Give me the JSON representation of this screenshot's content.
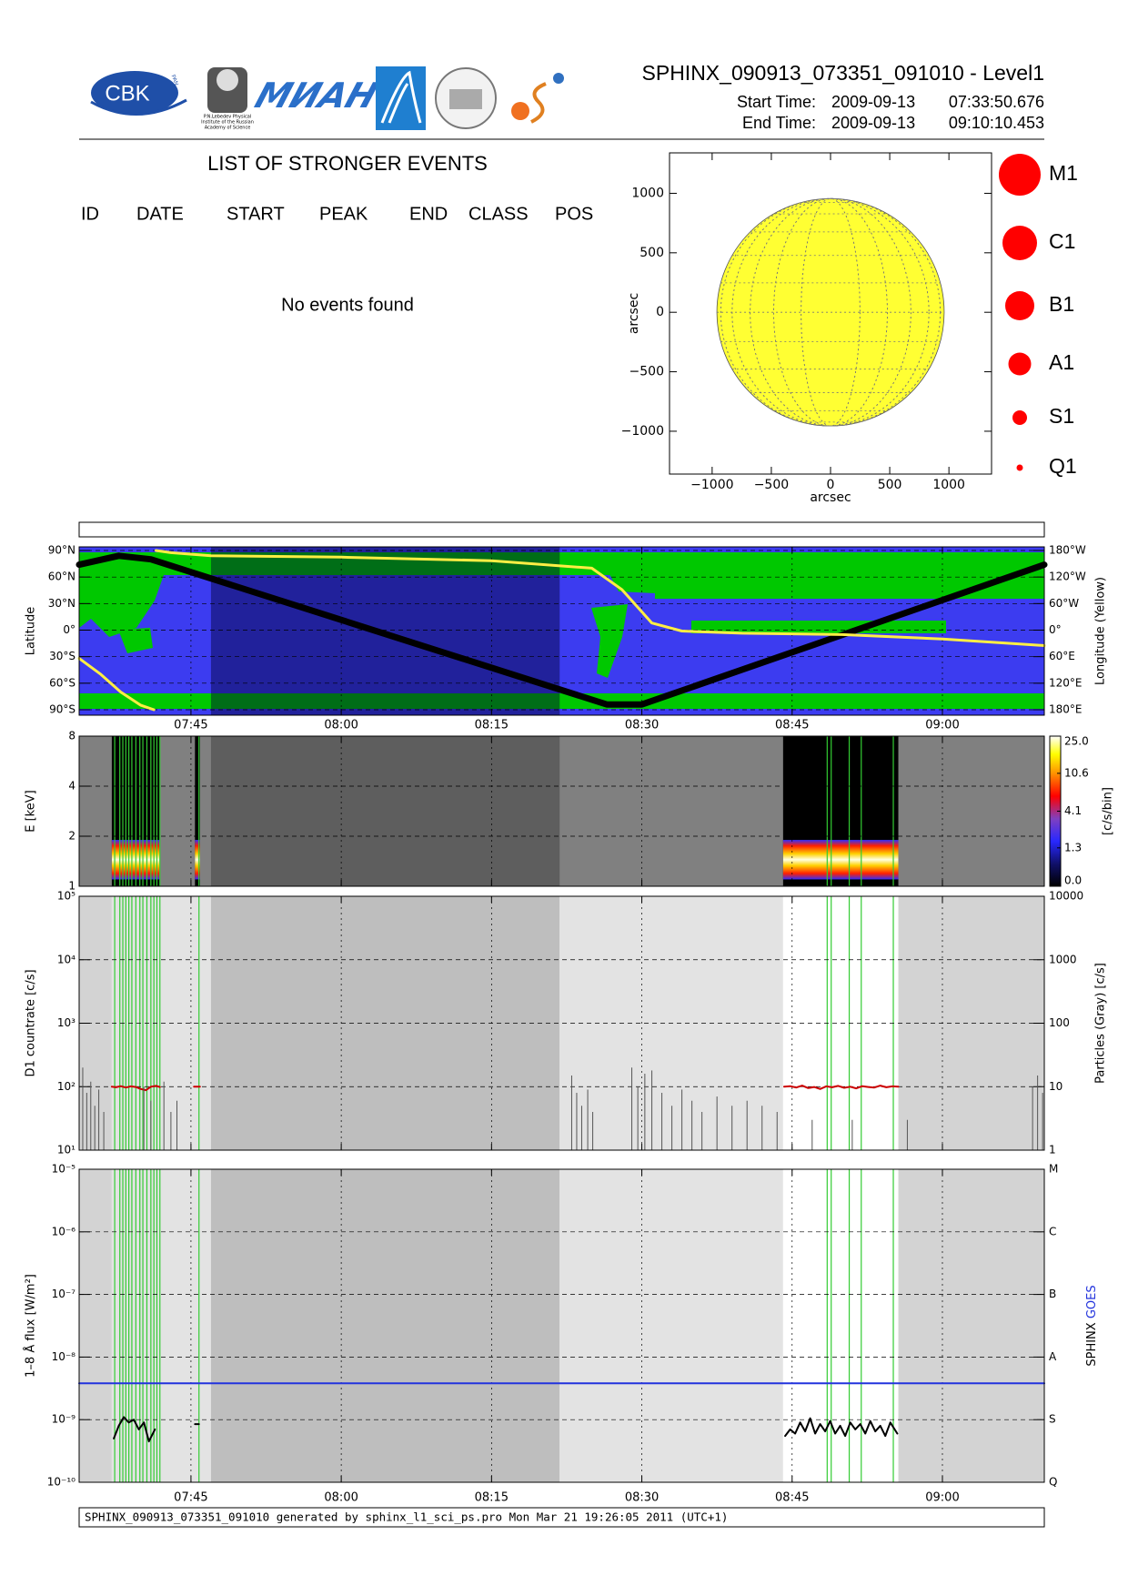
{
  "header": {
    "logo_text": "CBK",
    "logo_subtext": "PAN",
    "mian_text": "МИАН",
    "lebedev_caption": [
      "P.N.Lebedev Physical",
      "Institute of the Russian",
      "Academy of Science"
    ],
    "title": "SPHINX_090913_073351_091010 - Level1",
    "start_label": "Start Time:",
    "start_date": "2009-09-13",
    "start_time": "07:33:50.676",
    "end_label": "End Time:",
    "end_date": "2009-09-13",
    "end_time": "09:10:10.453"
  },
  "events": {
    "title": "LIST OF STRONGER EVENTS",
    "columns": [
      "ID",
      "DATE",
      "START",
      "PEAK",
      "END",
      "CLASS",
      "POS"
    ],
    "message": "No events found"
  },
  "timeline": {
    "green_lines": [
      457.39,
      457.9,
      458.2,
      458.5,
      458.8,
      459.1,
      459.5,
      459.9,
      460.2,
      460.6,
      461.0,
      461.3,
      461.6,
      461.9,
      465.8,
      528.5,
      528.9,
      530.7,
      531.9,
      535.1
    ],
    "color": "#33cc33"
  },
  "chart_data": [
    {
      "type": "disk",
      "xlabel": "arcsec",
      "ylabel": "arcsec",
      "xlim": [
        -1360,
        1360
      ],
      "ylim": [
        -1360,
        1340
      ],
      "xticks": [
        {
          "value": -1000,
          "label": "−1000"
        },
        {
          "value": -500,
          "label": "−500"
        },
        0,
        500,
        1000
      ],
      "yticks": [
        {
          "value": -1000,
          "label": "−1000"
        },
        {
          "value": -500,
          "label": "−500"
        },
        0,
        500,
        1000
      ],
      "sun_radius": 960,
      "color": "#ffff33",
      "legend": [
        "M1",
        "C1",
        "B1",
        "A1",
        "S1",
        "Q1"
      ],
      "legend_color": "#ff0000"
    },
    {
      "type": "map",
      "ylabel": "Latitude",
      "y2label": "Longitude (Yellow)",
      "xlim": [
        453.84,
        550.17
      ],
      "xticks": [
        {
          "value": 465,
          "label": "07:45"
        },
        {
          "value": 480,
          "label": "08:00"
        },
        {
          "value": 495,
          "label": "08:15"
        },
        {
          "value": 510,
          "label": "08:30"
        },
        {
          "value": 525,
          "label": "08:45"
        },
        {
          "value": 540,
          "label": "09:00"
        }
      ],
      "ylim": [
        -90,
        90
      ],
      "yticks": [
        {
          "value": 90,
          "label": "90°N"
        },
        {
          "value": 60,
          "label": "60°N"
        },
        {
          "value": 30,
          "label": "30°N"
        },
        {
          "value": 0,
          "label": "0°"
        },
        {
          "value": -30,
          "label": "30°S"
        },
        {
          "value": -60,
          "label": "60°S"
        },
        {
          "value": -90,
          "label": "90°S"
        }
      ],
      "y2lim": [
        180,
        -180
      ],
      "y2ticks": [
        {
          "value": -180,
          "label": "180°W"
        },
        {
          "value": -120,
          "label": "120°W"
        },
        {
          "value": -60,
          "label": "60°W"
        },
        {
          "value": 0,
          "label": "0°"
        },
        {
          "value": 60,
          "label": "60°E"
        },
        {
          "value": 120,
          "label": "120°E"
        },
        {
          "value": 180,
          "label": "180°E"
        }
      ],
      "grid": true,
      "bands": [
        {
          "from": 467.0,
          "to": 501.8,
          "color": "rgba(0,0,50,0.45)"
        }
      ],
      "series": [
        {
          "color": "#000000",
          "x": [
            453.84,
            457.8,
            461,
            506.5,
            510,
            550.17
          ],
          "values": [
            74,
            84,
            80,
            -84,
            -84,
            74
          ]
        },
        {
          "color": "#ffee44",
          "axis": "y2",
          "x": [
            453.84,
            456,
            458,
            460,
            461.3,
            461.4,
            461.5,
            463,
            467,
            480,
            495,
            505,
            508,
            511,
            514,
            520,
            530,
            540,
            550.17
          ],
          "values": [
            64,
            100,
            140,
            170,
            180,
            null,
            -180,
            -175,
            -168,
            -165,
            -157,
            -140,
            -92,
            -16,
            2,
            7,
            10,
            20,
            35
          ]
        }
      ]
    },
    {
      "type": "spectrogram",
      "ylabel": "E [keV]",
      "log": true,
      "xlim": [
        453.84,
        550.17
      ],
      "xticks": [
        465,
        480,
        495,
        510,
        525,
        540
      ],
      "ylim": [
        1,
        8
      ],
      "yticks": [
        1,
        2,
        4,
        8
      ],
      "grid": true,
      "event_lines": true,
      "bands": [
        {
          "from": 453.84,
          "to": 550.17,
          "color": "#808080"
        },
        {
          "from": 467.0,
          "to": 501.8,
          "color": "#5e5e5e"
        }
      ],
      "data_intervals": [
        [
          457.1,
          461.9
        ],
        [
          465.4,
          465.9
        ],
        [
          524.1,
          535.6
        ]
      ],
      "emission_band": [
        1.1,
        1.9
      ],
      "colorbar": {
        "label": "[c/s/bin]",
        "scale": "log1p",
        "lim": [
          0,
          25
        ],
        "ticks": [
          {
            "value": 0,
            "label": "0.0"
          },
          1.3,
          4.1,
          10.6,
          {
            "value": 25,
            "label": "25.0"
          }
        ]
      }
    },
    {
      "type": "line",
      "ylabel": "D1 countrate [c/s]",
      "y2label": "Particles (Gray) [c/s]",
      "log": true,
      "xlim": [
        453.84,
        550.17
      ],
      "xticks": [
        465,
        480,
        495,
        510,
        525,
        540
      ],
      "ylim": [
        10,
        100000
      ],
      "yticks": [
        {
          "value": 10,
          "label": "10¹"
        },
        {
          "value": 100,
          "label": "10²"
        },
        {
          "value": 1000,
          "label": "10³"
        },
        {
          "value": 10000,
          "label": "10⁴"
        },
        {
          "value": 100000,
          "label": "10⁵"
        }
      ],
      "y2lim": [
        1,
        10000
      ],
      "y2ticks": [
        1,
        10,
        100,
        1000,
        10000
      ],
      "grid": true,
      "event_lines": true,
      "bands": [
        {
          "from": 453.84,
          "to": 457.1,
          "color": "#d3d3d3"
        },
        {
          "from": 457.1,
          "to": 467.0,
          "color": "#e3e3e3"
        },
        {
          "from": 467.0,
          "to": 501.8,
          "color": "#bebebe"
        },
        {
          "from": 501.8,
          "to": 524.1,
          "color": "#e3e3e3"
        },
        {
          "from": 524.1,
          "to": 535.6,
          "color": "#ffffff"
        },
        {
          "from": 535.6,
          "to": 550.17,
          "color": "#d3d3d3"
        }
      ],
      "series": [
        {
          "color": "#cc0000",
          "x": [
            457.1,
            457.5,
            458.0,
            458.5,
            459.0,
            459.5,
            460.0,
            460.5,
            461.0,
            461.5,
            461.9,
            463,
            465.3,
            465.9,
            470,
            524.2,
            524.8,
            525.4,
            526.0,
            526.6,
            527.2,
            527.8,
            528.4,
            529.0,
            529.6,
            530.2,
            530.8,
            531.4,
            532.0,
            532.6,
            533.2,
            533.8,
            534.4,
            535.0,
            535.6
          ],
          "values": [
            100,
            98,
            102,
            97,
            101,
            99,
            92,
            88,
            100,
            103,
            99,
            null,
            100,
            100,
            null,
            100,
            102,
            97,
            104,
            95,
            99,
            92,
            101,
            98,
            103,
            96,
            100,
            94,
            102,
            99,
            97,
            104,
            98,
            101,
            100
          ]
        },
        {
          "color": "#555555",
          "axis": "y2",
          "style": "spikes",
          "x": [
            454.2,
            454.6,
            455.0,
            455.4,
            455.8,
            456.3,
            460.3,
            461.0,
            462.3,
            463.0,
            463.6,
            503.0,
            503.5,
            504.0,
            504.6,
            505.1,
            509.0,
            509.6,
            510.3,
            511.0,
            512.0,
            513.0,
            514.0,
            515.0,
            516.0,
            517.5,
            519.0,
            520.5,
            522.0,
            523.5,
            527,
            531,
            536.5,
            549.0,
            549.5,
            550.0
          ],
          "values": [
            20,
            8,
            12,
            5,
            9,
            4,
            10,
            6,
            12,
            4,
            6,
            15,
            8,
            5,
            9,
            4,
            20,
            10,
            16,
            18,
            8,
            5,
            9,
            6,
            4,
            7,
            5,
            6,
            5,
            4,
            3,
            3,
            3,
            10,
            15,
            8
          ]
        }
      ]
    },
    {
      "type": "line",
      "ylabel": "1–8 Å flux [W/m²]",
      "log": true,
      "xlim": [
        453.84,
        550.17
      ],
      "xticks": [
        {
          "value": 465,
          "label": "07:45"
        },
        {
          "value": 480,
          "label": "08:00"
        },
        {
          "value": 495,
          "label": "08:15"
        },
        {
          "value": 510,
          "label": "08:30"
        },
        {
          "value": 525,
          "label": "08:45"
        },
        {
          "value": 540,
          "label": "09:00"
        }
      ],
      "ylim": [
        1e-10,
        1e-05
      ],
      "yticks": [
        {
          "value": 1e-10,
          "label": "10⁻¹⁰"
        },
        {
          "value": 1e-09,
          "label": "10⁻⁹"
        },
        {
          "value": 1e-08,
          "label": "10⁻⁸"
        },
        {
          "value": 1e-07,
          "label": "10⁻⁷"
        },
        {
          "value": 1e-06,
          "label": "10⁻⁶"
        },
        {
          "value": 1e-05,
          "label": "10⁻⁵"
        }
      ],
      "y2lim": [
        1e-10,
        1e-05
      ],
      "y2ticks": [
        {
          "value": 1e-10,
          "label": "Q"
        },
        {
          "value": 1e-09,
          "label": "S"
        },
        {
          "value": 1e-08,
          "label": "A"
        },
        {
          "value": 1e-07,
          "label": "B"
        },
        {
          "value": 1e-06,
          "label": "C"
        },
        {
          "value": 1e-05,
          "label": "M"
        }
      ],
      "grid": true,
      "event_lines": true,
      "bands": [
        {
          "from": 453.84,
          "to": 457.1,
          "color": "#d3d3d3"
        },
        {
          "from": 457.1,
          "to": 467.0,
          "color": "#e3e3e3"
        },
        {
          "from": 467.0,
          "to": 501.8,
          "color": "#bebebe"
        },
        {
          "from": 501.8,
          "to": 524.1,
          "color": "#e3e3e3"
        },
        {
          "from": 524.1,
          "to": 535.6,
          "color": "#ffffff"
        },
        {
          "from": 535.6,
          "to": 550.17,
          "color": "#d3d3d3"
        }
      ],
      "series": [
        {
          "name": "SPHINX",
          "color": "#000000",
          "x": [
            457.3,
            457.8,
            458.3,
            458.8,
            459.3,
            459.8,
            460.3,
            460.8,
            461.4,
            463,
            465.4,
            465.8,
            470,
            524.3,
            524.8,
            525.3,
            525.8,
            526.3,
            526.8,
            527.3,
            527.8,
            528.3,
            528.8,
            529.3,
            529.8,
            530.3,
            530.8,
            531.3,
            531.8,
            532.3,
            532.8,
            533.3,
            533.8,
            534.3,
            534.8,
            535.5
          ],
          "values": [
            5e-10,
            8e-10,
            1.1e-09,
            9e-10,
            1e-09,
            7e-10,
            9e-10,
            4.5e-10,
            7e-10,
            null,
            8.5e-10,
            8.5e-10,
            null,
            5.5e-10,
            7e-10,
            6e-10,
            9e-10,
            6.5e-10,
            1.05e-09,
            6e-10,
            8.5e-10,
            6.5e-10,
            9.5e-10,
            6e-10,
            8e-10,
            5.5e-10,
            9e-10,
            7e-10,
            8.5e-10,
            6e-10,
            9.5e-10,
            6.5e-10,
            8e-10,
            5.5e-10,
            9e-10,
            6e-10
          ]
        },
        {
          "name": "GOES",
          "color": "#2233dd",
          "x": [
            453.84,
            550.17
          ],
          "values": [
            3.8e-09,
            3.8e-09
          ]
        }
      ]
    }
  ],
  "footer": "SPHINX_090913_073351_091010 generated by sphinx_l1_sci_ps.pro Mon Mar 21 19:26:05 2011 (UTC+1)"
}
